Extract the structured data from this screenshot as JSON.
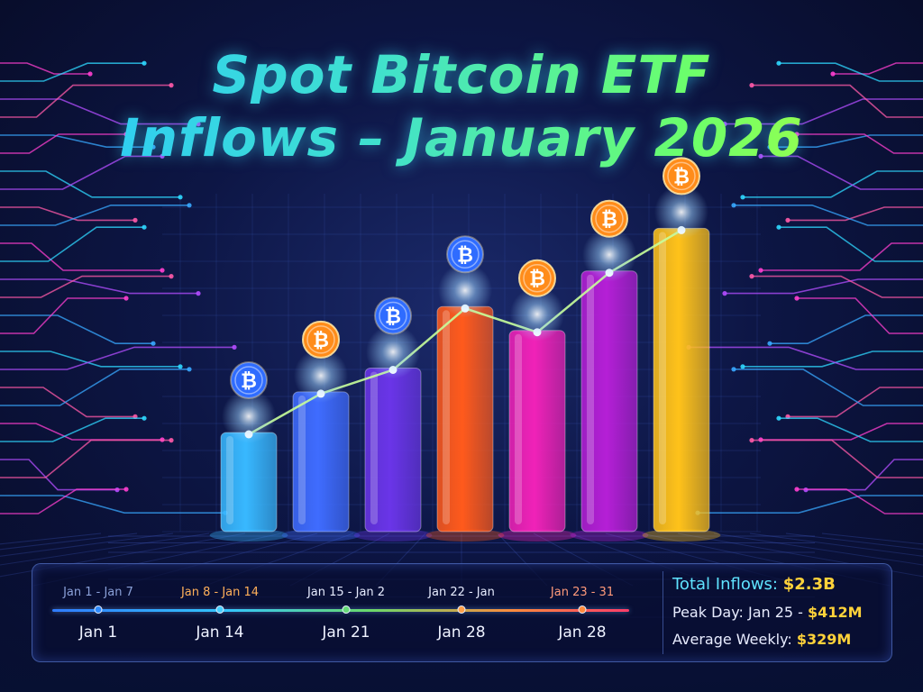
{
  "title": {
    "line1": "Spot Bitcoin ETF",
    "line2": "Inflows – January 2026"
  },
  "chart_data": {
    "type": "bar",
    "title": "Spot Bitcoin ETF Inflows – January 2026",
    "bars": [
      {
        "value": 1.0,
        "color": "#38b8ff",
        "coin": "blue"
      },
      {
        "value": 1.41,
        "color": "#3f6cff",
        "coin": "orange"
      },
      {
        "value": 1.65,
        "color": "#6a35e8",
        "coin": "blue"
      },
      {
        "value": 2.27,
        "color": "#ff5a1c",
        "coin": "blue"
      },
      {
        "value": 2.03,
        "color": "#f022b8",
        "coin": "orange"
      },
      {
        "value": 2.63,
        "color": "#b51fd6",
        "coin": "orange"
      },
      {
        "value": 3.06,
        "color": "#ffc21a",
        "coin": "orange"
      }
    ],
    "trend_line": true,
    "grid": true,
    "legend": "none"
  },
  "timeline": {
    "ranges": [
      {
        "label": "Jan 1 - Jan 7",
        "color": "#8aa0d8"
      },
      {
        "label": "Jan 8 - Jan 14",
        "color": "#ffb05a"
      },
      {
        "label": "Jan 15 - Jan 2",
        "color": "#e6ecff"
      },
      {
        "label": "Jan 22 - Jan",
        "color": "#e6ecff"
      },
      {
        "label": "Jan 23 - 31",
        "color": "#ff9a7a"
      }
    ],
    "ticks": [
      "Jan 1",
      "Jan 14",
      "Jan 21",
      "Jan 28",
      "Jan 28"
    ],
    "dot_colors": [
      "#2f8bff",
      "#48cfff",
      "#66d977",
      "#ffa04a",
      "#ff8a3d"
    ]
  },
  "stats": {
    "total_label": "Total Inflows:",
    "total_value": "$2.3B",
    "peak_label": "Peak Day: Jan 25 -",
    "peak_value": "$412M",
    "avg_label": "Average Weekly:",
    "avg_value": "$329M"
  },
  "colors": {
    "coin_blue": "#2f6cff",
    "coin_orange": "#ff8c1a",
    "trend": "#c8ff9a",
    "accent": "#ffd23a"
  }
}
